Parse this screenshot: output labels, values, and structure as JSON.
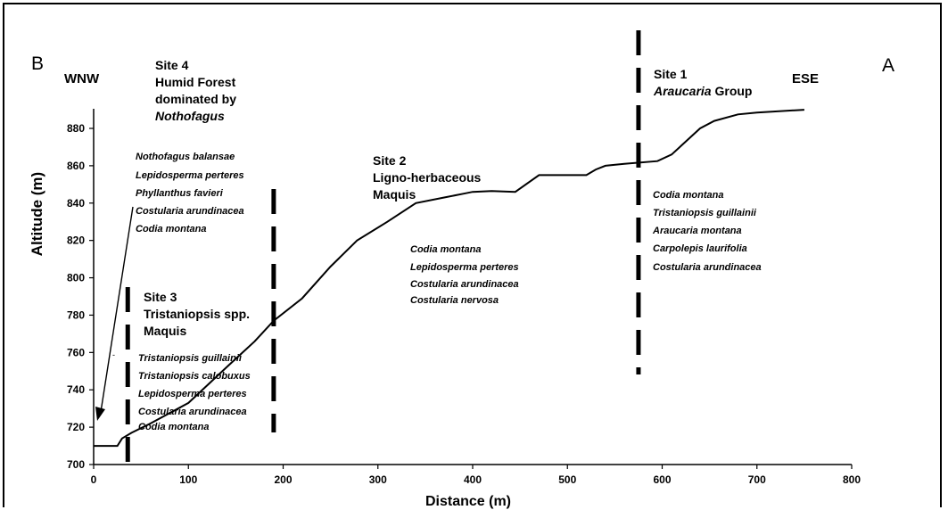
{
  "chart_data": {
    "type": "line",
    "xlabel": "Distance (m)",
    "ylabel": "Altitude (m)",
    "xlim": [
      0,
      800
    ],
    "ylim": [
      700,
      880
    ],
    "xticks": [
      "0",
      "100",
      "200",
      "300",
      "400",
      "500",
      "600",
      "700",
      "800"
    ],
    "yticks": [
      "700",
      "720",
      "740",
      "760",
      "780",
      "800",
      "820",
      "840",
      "860",
      "880"
    ],
    "grid": false,
    "series": [
      {
        "x": [
          0,
          25,
          30,
          40,
          60,
          100,
          140,
          170,
          190,
          220,
          250,
          278,
          310,
          340,
          370,
          390,
          400,
          420,
          445,
          470,
          520,
          530,
          540,
          560,
          595,
          610,
          640,
          655,
          680,
          700,
          750
        ],
        "y": [
          710,
          710,
          714,
          717,
          722,
          733,
          752,
          766,
          777,
          789,
          806,
          820,
          830,
          840,
          843,
          845,
          846,
          846.5,
          846,
          855,
          855,
          858,
          860,
          861,
          862.5,
          866,
          880,
          884,
          887.5,
          888.5,
          890
        ]
      }
    ],
    "dividers": [
      36,
      190,
      575
    ],
    "corner_labels": {
      "left": "B",
      "right": "A"
    },
    "direction_labels": {
      "left": "WNW",
      "right": "ESE"
    },
    "sites": {
      "site4": {
        "title": [
          "Site 4",
          "Humid Forest",
          "dominated by"
        ],
        "title_italic": "Nothofagus",
        "species": [
          "Nothofagus balansae",
          "Lepidosperma perteres",
          "Phyllanthus favieri",
          "Costularia arundinacea",
          "Codia montana"
        ]
      },
      "site3": {
        "title": [
          "Site 3",
          "Tristaniopsis spp.",
          "Maquis"
        ],
        "species": [
          "Tristaniopsis guillainii",
          "Tristaniopsis calobuxus",
          "Lepidosperma perteres",
          "Costularia arundinacea",
          "Codia montana"
        ]
      },
      "site2": {
        "title": [
          "Site 2",
          "Ligno-herbaceous",
          "Maquis"
        ],
        "species": [
          "Codia montana",
          "Lepidosperma perteres",
          "Costularia arundinacea",
          "Costularia nervosa"
        ]
      },
      "site1": {
        "title": "Site 1",
        "title2_italic": "Araucaria",
        "title2_rest": " Group",
        "species": [
          "Codia montana",
          "Tristaniopsis guillainii",
          "Araucaria montana",
          "Carpolepis laurifolia",
          "Costularia arundinacea"
        ]
      }
    }
  }
}
